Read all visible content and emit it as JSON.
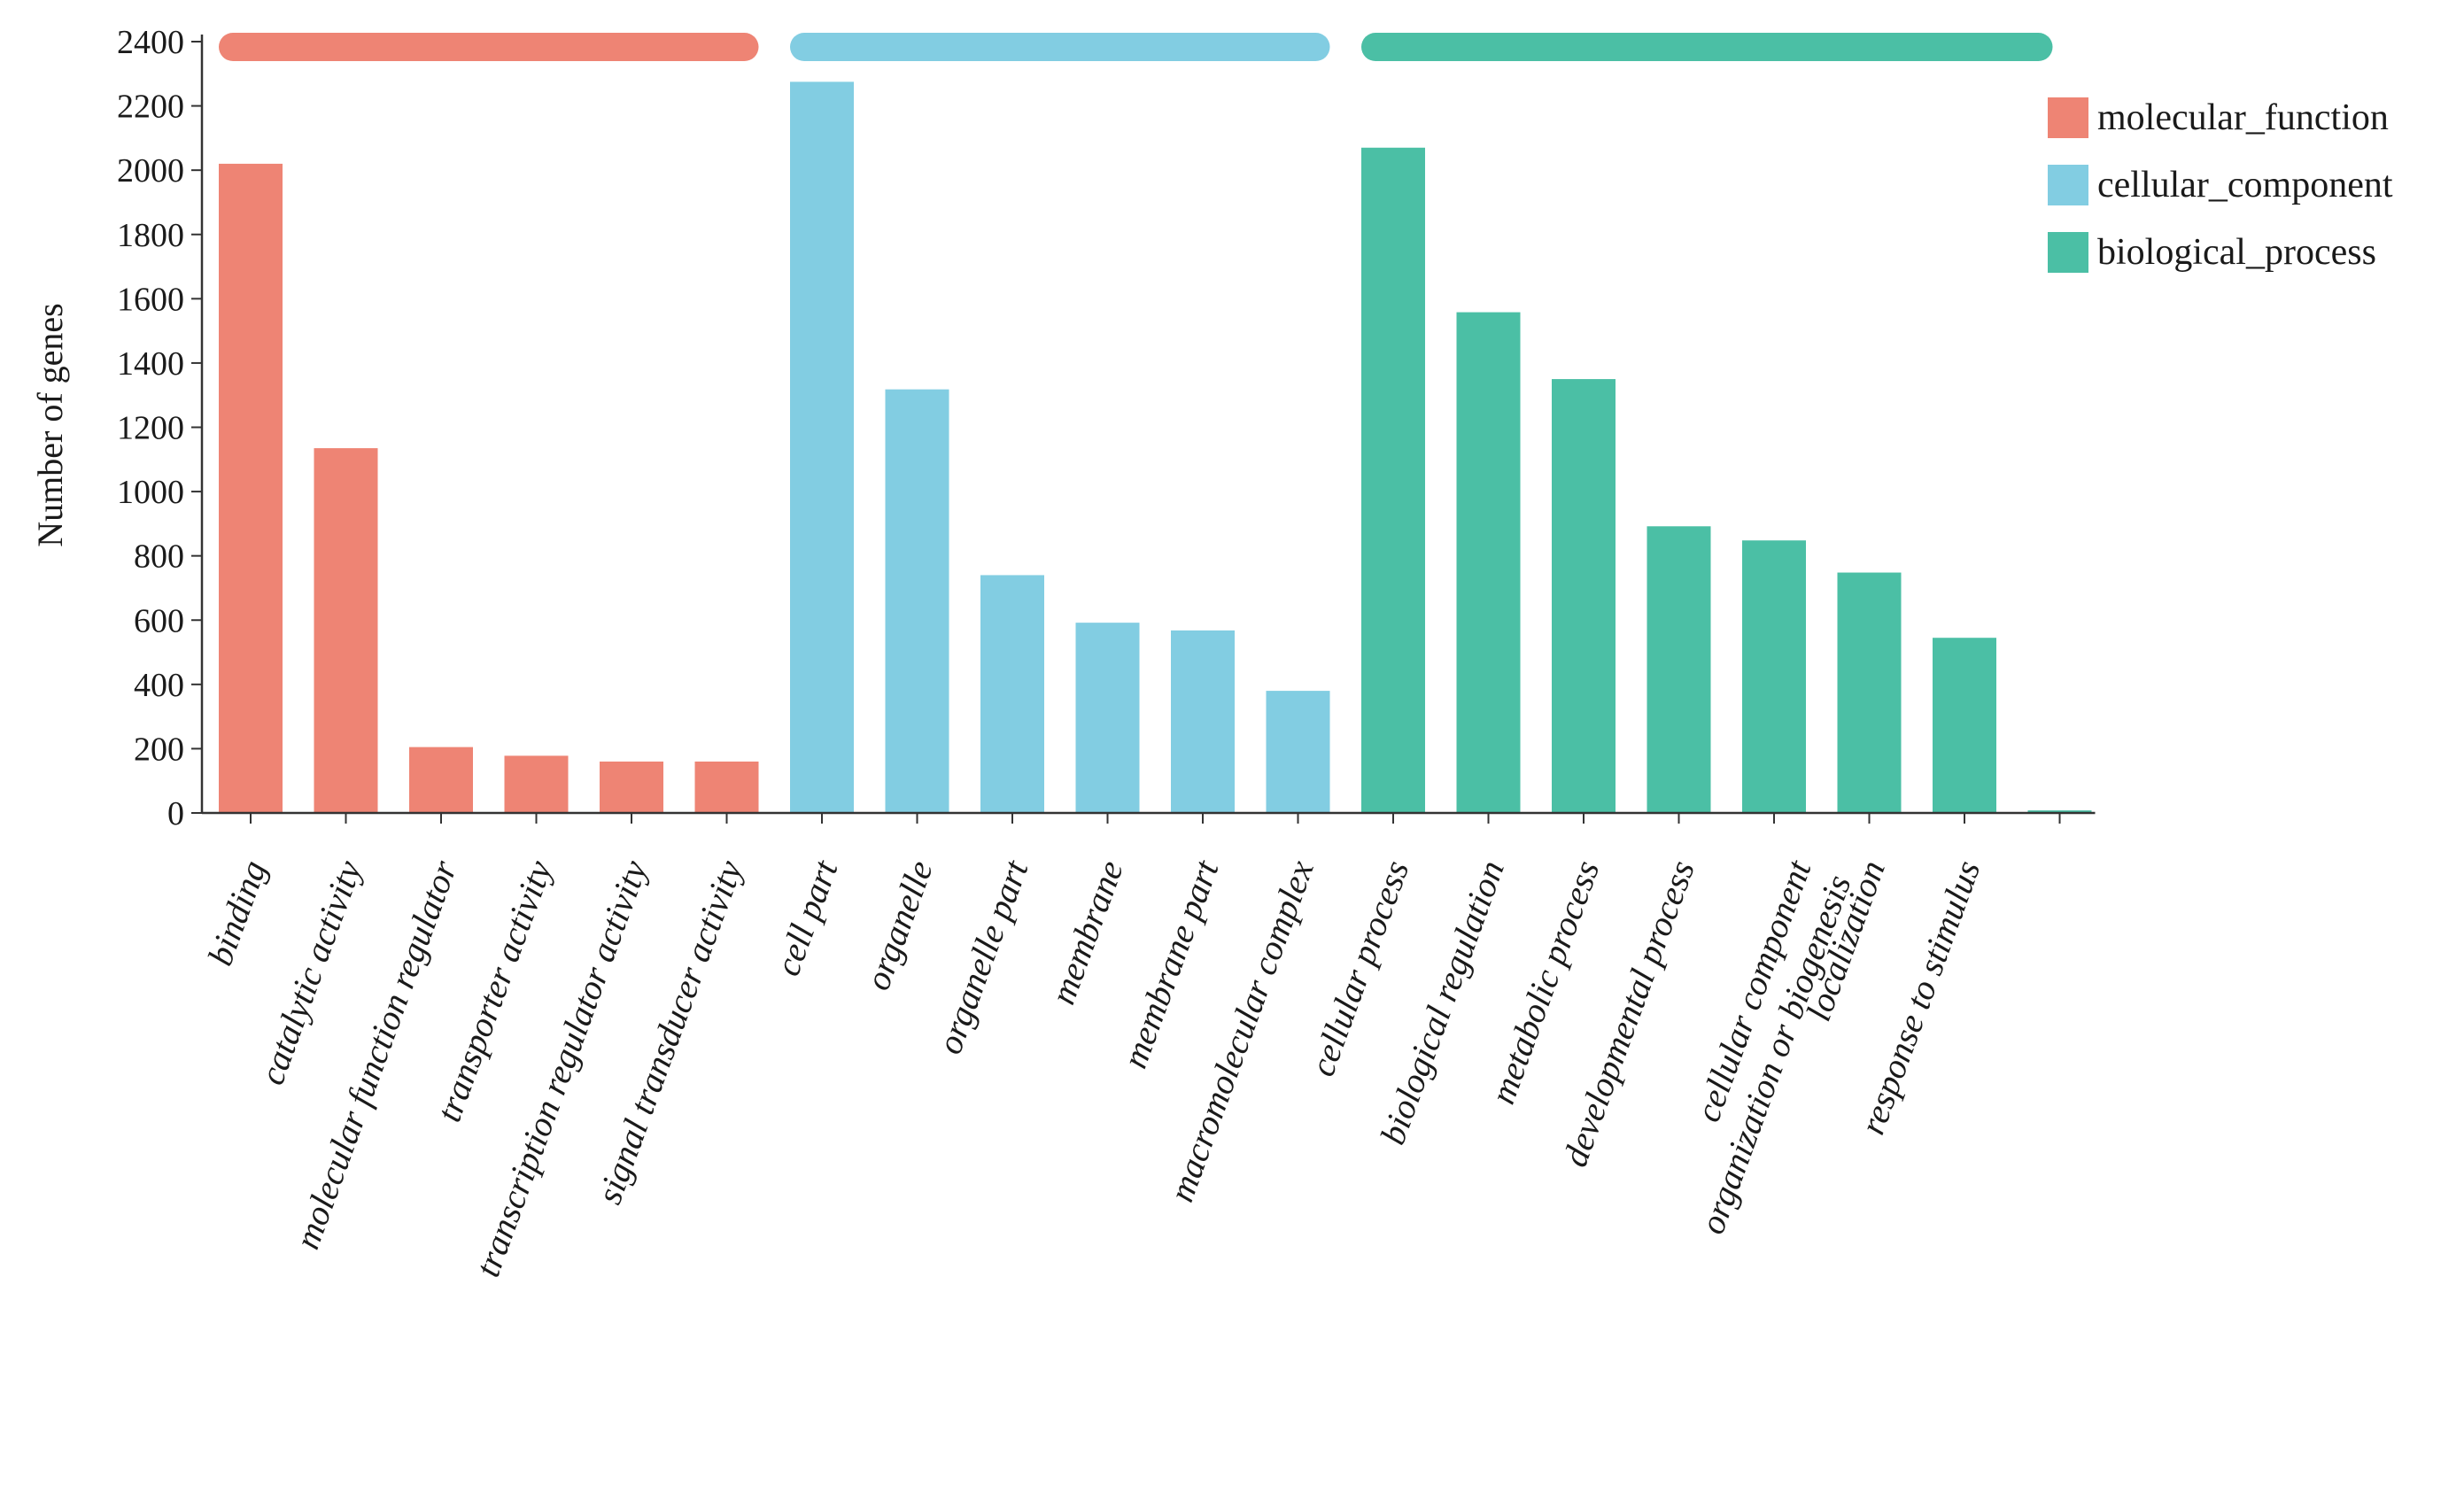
{
  "chart_data": {
    "type": "bar",
    "title": "",
    "xlabel": "",
    "ylabel": "Number of genes",
    "ylim": [
      0,
      2400
    ],
    "yticks": [
      0,
      200,
      400,
      600,
      800,
      1000,
      1200,
      1400,
      1600,
      1800,
      2000,
      2200,
      2400
    ],
    "grid": false,
    "legend_position": "top-right",
    "groups": [
      {
        "name": "molecular_function",
        "color": "#ee8474",
        "categories": [
          "binding",
          "catalytic activity",
          "molecular function regulator",
          "transporter activity",
          "transcription regulator activity",
          "signal transducer activity"
        ],
        "values": [
          2020,
          1135,
          205,
          178,
          160,
          160
        ]
      },
      {
        "name": "cellular_component",
        "color": "#82cde2",
        "categories": [
          "cell part",
          "organelle",
          "organelle part",
          "membrane",
          "membrane part",
          "macromolecular complex"
        ],
        "values": [
          2275,
          1318,
          740,
          592,
          568,
          380
        ]
      },
      {
        "name": "biological_process",
        "color": "#4bbfa5",
        "categories": [
          "cellular process",
          "biological regulation",
          "metabolic process",
          "developmental process",
          "cellular component organization or biogenesis",
          "localization",
          "response to stimulus",
          ""
        ],
        "category_label_lines": [
          [
            "cellular process"
          ],
          [
            "biological regulation"
          ],
          [
            "metabolic process"
          ],
          [
            "developmental process"
          ],
          [
            "cellular component",
            "organization or biogenesis"
          ],
          [
            "localization"
          ],
          [
            "response to stimulus"
          ],
          []
        ],
        "values": [
          2070,
          1558,
          1350,
          892,
          848,
          748,
          545,
          8
        ]
      }
    ]
  }
}
